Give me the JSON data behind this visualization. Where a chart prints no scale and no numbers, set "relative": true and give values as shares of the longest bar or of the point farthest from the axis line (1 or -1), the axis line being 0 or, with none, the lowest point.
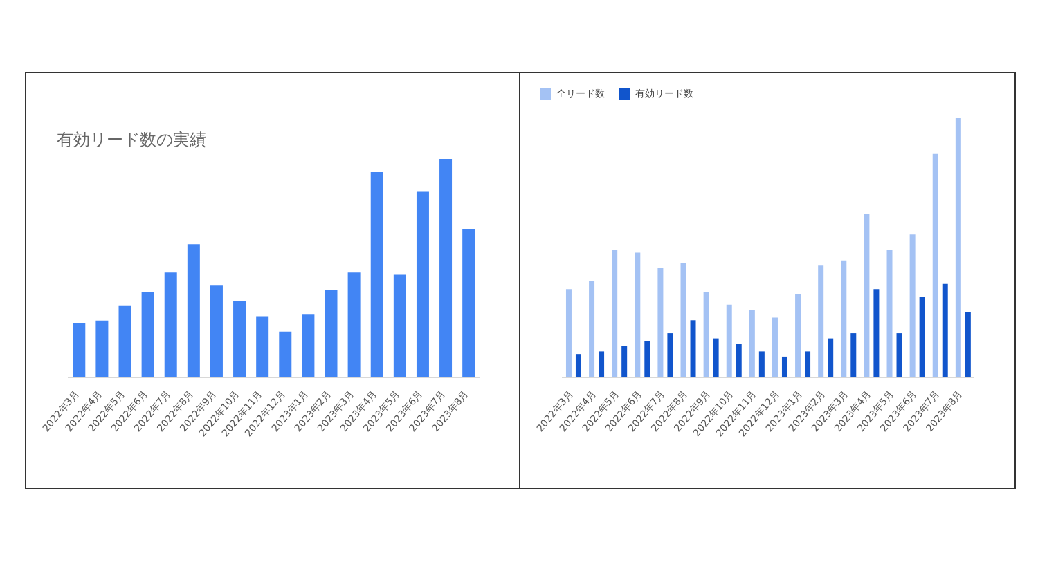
{
  "chart_data": [
    {
      "type": "bar",
      "title": "有効リード数の実績",
      "relative": true,
      "categories": [
        "2022年3月",
        "2022年4月",
        "2022年5月",
        "2022年6月",
        "2022年7月",
        "2022年8月",
        "2022年9月",
        "2022年10月",
        "2022年11月",
        "2022年12月",
        "2023年1月",
        "2023年2月",
        "2023年3月",
        "2023年4月",
        "2023年5月",
        "2023年6月",
        "2023年7月",
        "2023年8月"
      ],
      "series": [
        {
          "color": "#4285f4",
          "values": [
            0.25,
            0.26,
            0.33,
            0.39,
            0.48,
            0.61,
            0.42,
            0.35,
            0.28,
            0.21,
            0.29,
            0.4,
            0.48,
            0.94,
            0.47,
            0.85,
            1,
            0.68
          ]
        }
      ],
      "legend": false,
      "grid": false
    },
    {
      "type": "bar",
      "relative": true,
      "categories": [
        "2022年3月",
        "2022年4月",
        "2022年5月",
        "2022年6月",
        "2022年7月",
        "2022年8月",
        "2022年9月",
        "2022年10月",
        "2022年11月",
        "2022年12月",
        "2023年1月",
        "2023年2月",
        "2023年3月",
        "2023年4月",
        "2023年5月",
        "2023年6月",
        "2023年7月",
        "2023年8月"
      ],
      "series": [
        {
          "name": "全リード数",
          "color": "#a4c2f4",
          "values": [
            0.34,
            0.37,
            0.49,
            0.48,
            0.42,
            0.44,
            0.33,
            0.28,
            0.26,
            0.23,
            0.32,
            0.43,
            0.45,
            0.63,
            0.49,
            0.55,
            0.86,
            1
          ]
        },
        {
          "name": "有効リード数",
          "color": "#1155cc",
          "values": [
            0.09,
            0.1,
            0.12,
            0.14,
            0.17,
            0.22,
            0.15,
            0.13,
            0.1,
            0.08,
            0.1,
            0.15,
            0.17,
            0.34,
            0.17,
            0.31,
            0.36,
            0.25
          ]
        }
      ],
      "legend": "top left",
      "grid": false
    }
  ]
}
